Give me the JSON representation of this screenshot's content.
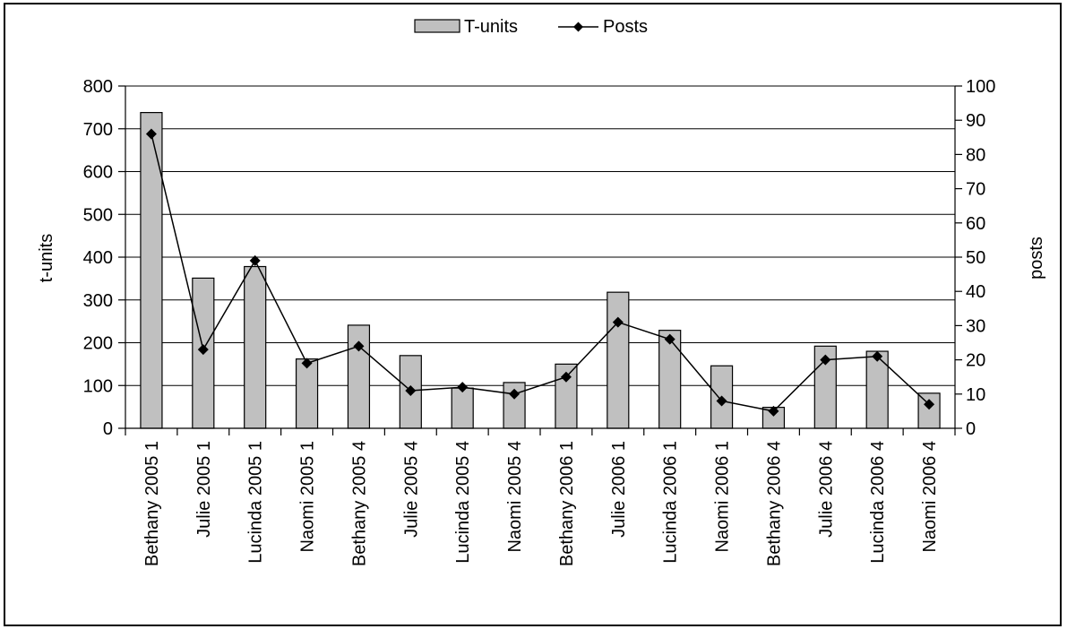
{
  "chart_data": {
    "type": "bar",
    "categories": [
      "Bethany 2005 1",
      "Julie 2005 1",
      "Lucinda 2005 1",
      "Naomi 2005 1",
      "Bethany 2005 4",
      "Julie 2005 4",
      "Lucinda 2005 4",
      "Naomi 2005 4",
      "Bethany 2006 1",
      "Julie 2006 1",
      "Lucinda 2006 1",
      "Naomi 2006 1",
      "Bethany 2006 4",
      "Julie 2006 4",
      "Lucinda 2006 4",
      "Naomi 2006 4"
    ],
    "series": [
      {
        "name": "T-units",
        "type": "bar",
        "axis": "left",
        "color": "#c0c0c0",
        "values": [
          738,
          351,
          378,
          162,
          241,
          170,
          94,
          107,
          150,
          318,
          229,
          146,
          49,
          192,
          180,
          82
        ]
      },
      {
        "name": "Posts",
        "type": "line",
        "axis": "right",
        "color": "#000000",
        "marker": "diamond",
        "values": [
          86,
          23,
          49,
          19,
          24,
          11,
          12,
          10,
          15,
          31,
          26,
          8,
          5,
          20,
          21,
          7
        ]
      }
    ],
    "ylabel": "t-units",
    "ylabel_right": "posts",
    "ylim": [
      0,
      800
    ],
    "ylim_right": [
      0,
      100
    ],
    "yticks": [
      "0",
      "100",
      "200",
      "300",
      "400",
      "500",
      "600",
      "700",
      "800"
    ],
    "yticks_right": [
      "0",
      "10",
      "20",
      "30",
      "40",
      "50",
      "60",
      "70",
      "80",
      "90",
      "100"
    ],
    "grid": true,
    "legend_position": "top-center",
    "legend": [
      "T-units",
      "Posts"
    ]
  }
}
